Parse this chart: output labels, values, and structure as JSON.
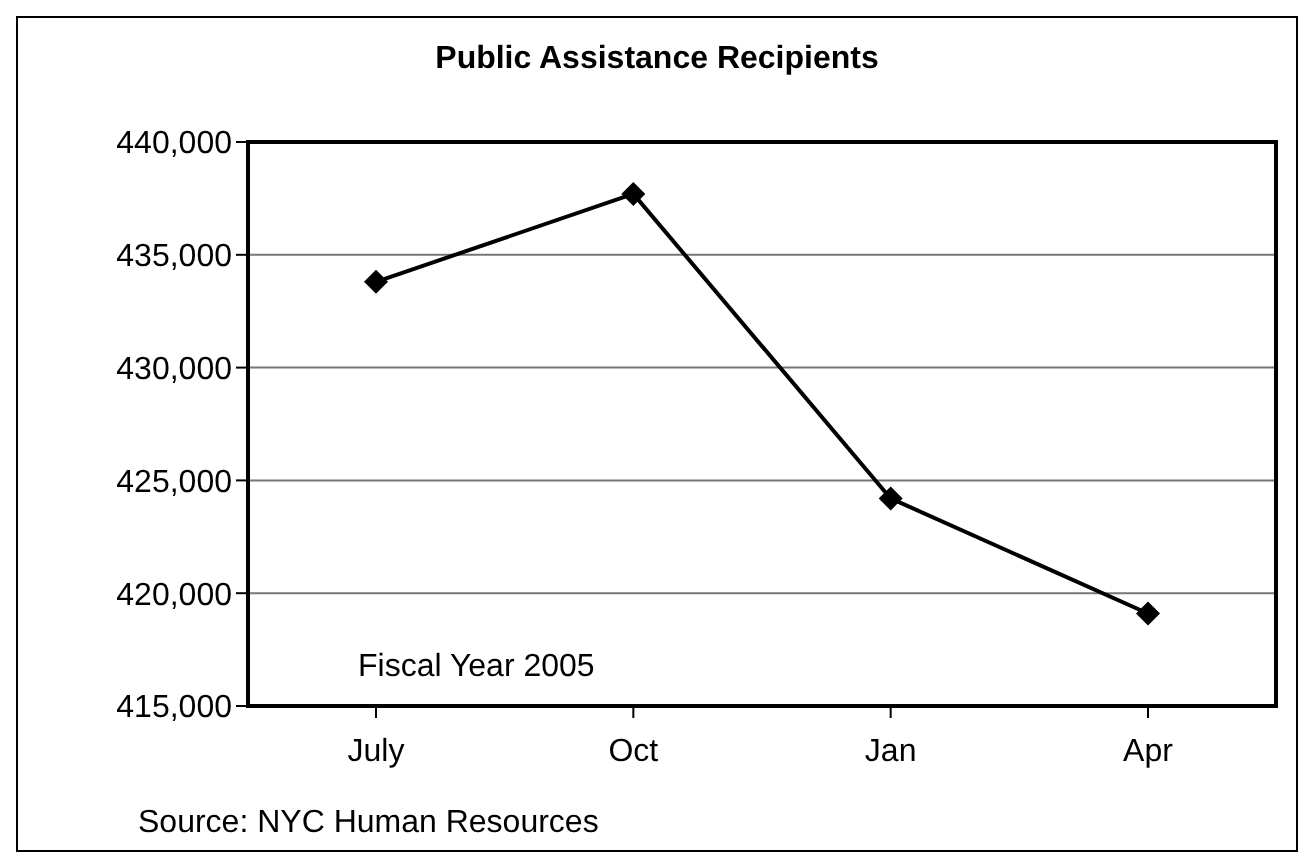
{
  "chart_data": {
    "type": "line",
    "title": "Public Assistance Recipients",
    "categories": [
      "July",
      "Oct",
      "Jan",
      "Apr"
    ],
    "series": [
      {
        "color": "#000000",
        "values": [
          433800,
          437700,
          424200,
          419100
        ]
      }
    ],
    "ylim": [
      415000,
      440000
    ],
    "yticks": [
      {
        "value": 415000,
        "label": "415,000"
      },
      {
        "value": 420000,
        "label": "420,000"
      },
      {
        "value": 425000,
        "label": "425,000"
      },
      {
        "value": 430000,
        "label": "430,000"
      },
      {
        "value": 435000,
        "label": "435,000"
      },
      {
        "value": 440000,
        "label": "440,000"
      }
    ],
    "grid": "y",
    "legend": false,
    "marker": "diamond",
    "line_style": "solid",
    "annotations": [
      "Fiscal Year 2005",
      "Source: NYC Human Resources"
    ]
  }
}
